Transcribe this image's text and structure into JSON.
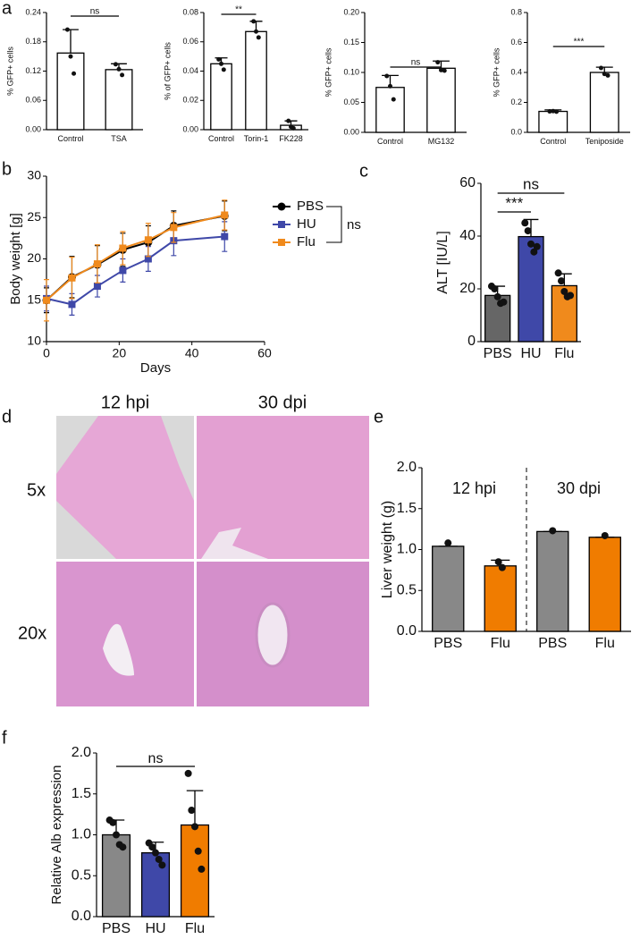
{
  "panel_labels": [
    "a",
    "b",
    "c",
    "d",
    "e",
    "f"
  ],
  "histology": {
    "columns": [
      "12 hpi",
      "30 dpi"
    ],
    "rows": [
      "5x",
      "20x"
    ]
  },
  "chart_data": [
    {
      "type": "bar",
      "ylabel": "% GFP+ cells",
      "categories": [
        "Control",
        "TSA"
      ],
      "values": [
        0.157,
        0.123
      ],
      "errors": [
        0.048,
        0.012
      ],
      "points": [
        [
          0.205,
          0.15,
          0.115
        ],
        [
          0.134,
          0.124,
          0.112
        ]
      ],
      "colors": [
        "#ffffff",
        "#ffffff"
      ],
      "annotations": [
        "ns"
      ],
      "ylim": [
        0,
        0.24
      ],
      "yticks": [
        {
          "value": 0,
          "label": "0.00"
        },
        {
          "value": 0.06,
          "label": "0.06"
        },
        {
          "value": 0.12,
          "label": "0.12"
        },
        {
          "value": 0.18,
          "label": "0.18"
        },
        {
          "value": 0.24,
          "label": "0.24"
        }
      ]
    },
    {
      "type": "bar",
      "ylabel": "% of GFP+ cells",
      "categories": [
        "Control",
        "Torin-1",
        "FK228"
      ],
      "values": [
        0.045,
        0.067,
        0.003
      ],
      "errors": [
        0.004,
        0.007,
        0.003
      ],
      "points": [
        [
          0.048,
          0.045,
          0.041
        ],
        [
          0.074,
          0.067,
          0.063
        ],
        [
          0.006,
          0.002,
          0.001
        ]
      ],
      "colors": [
        "#ffffff",
        "#ffffff",
        "#ffffff"
      ],
      "annotations": [
        "**"
      ],
      "ylim": [
        0,
        0.08
      ],
      "yticks": [
        {
          "value": 0,
          "label": "0.00"
        },
        {
          "value": 0.02,
          "label": "0.02"
        },
        {
          "value": 0.04,
          "label": "0.04"
        },
        {
          "value": 0.06,
          "label": "0.06"
        },
        {
          "value": 0.08,
          "label": "0.08"
        }
      ]
    },
    {
      "type": "bar",
      "ylabel": "% GFP+ cells",
      "categories": [
        "Control",
        "MG132"
      ],
      "values": [
        0.075,
        0.107
      ],
      "errors": [
        0.02,
        0.012
      ],
      "points": [
        [
          0.094,
          0.077,
          0.055
        ],
        [
          0.117,
          0.104,
          0.103
        ]
      ],
      "colors": [
        "#ffffff",
        "#ffffff"
      ],
      "annotations": [
        "ns"
      ],
      "ylim": [
        0,
        0.2
      ],
      "yticks": [
        {
          "value": 0,
          "label": "0.00"
        },
        {
          "value": 0.05,
          "label": "0.05"
        },
        {
          "value": 0.1,
          "label": "0.10"
        },
        {
          "value": 0.15,
          "label": "0.15"
        },
        {
          "value": 0.2,
          "label": "0.20"
        }
      ]
    },
    {
      "type": "bar",
      "ylabel": "% GFP+ cells",
      "categories": [
        "Control",
        "Teniposide"
      ],
      "values": [
        0.14,
        0.4
      ],
      "errors": [
        0.01,
        0.035
      ],
      "points": [
        [
          0.14,
          0.142,
          0.138
        ],
        [
          0.43,
          0.39,
          0.38
        ]
      ],
      "colors": [
        "#ffffff",
        "#ffffff"
      ],
      "annotations": [
        "***"
      ],
      "ylim": [
        0,
        0.8
      ],
      "yticks": [
        {
          "value": 0,
          "label": "0.0"
        },
        0.2,
        0.4,
        0.6,
        0.8
      ]
    },
    {
      "type": "line",
      "xlabel": "Days",
      "ylabel": "Body weight [g]",
      "x": [
        0,
        7,
        14,
        21,
        28,
        35,
        49
      ],
      "series": [
        {
          "name": "PBS",
          "color": "#000000",
          "marker": "circle",
          "values": [
            15,
            17.8,
            19.3,
            21.1,
            22,
            24,
            25.2
          ],
          "errors": [
            1.5,
            2.5,
            2.3,
            2,
            2,
            1.8,
            1.8
          ]
        },
        {
          "name": "HU",
          "color": "#3f48a8",
          "marker": "square",
          "values": [
            15.2,
            14.5,
            16.7,
            18.6,
            20,
            22.2,
            22.7
          ],
          "errors": [
            1.5,
            1.3,
            1.3,
            1.4,
            1.5,
            1.8,
            1.8
          ]
        },
        {
          "name": "Flu",
          "color": "#f08a1c",
          "marker": "square",
          "values": [
            15,
            17.7,
            19.4,
            21.3,
            22.3,
            23.8,
            25.3
          ],
          "errors": [
            2.5,
            2.5,
            2.3,
            2,
            2,
            1.8,
            1.8
          ]
        }
      ],
      "annotations": [
        "ns"
      ],
      "xlim": [
        0,
        60
      ],
      "xticks": [
        0,
        20,
        40,
        60
      ],
      "ylim": [
        10,
        30
      ],
      "yticks": [
        10,
        15,
        20,
        25,
        30
      ]
    },
    {
      "type": "bar",
      "ylabel": "ALT [IU/L]",
      "categories": [
        "PBS",
        "HU",
        "Flu"
      ],
      "values": [
        17.5,
        39.8,
        21.2
      ],
      "errors": [
        3.5,
        6.5,
        4.5
      ],
      "points": [
        [
          21,
          20,
          17,
          14.5,
          15
        ],
        [
          45,
          42,
          37,
          34,
          36
        ],
        [
          26,
          23,
          19,
          17,
          17.5
        ]
      ],
      "colors": [
        "#666666",
        "#3f48a8",
        "#f08a1c"
      ],
      "annotations": [
        "ns",
        "***"
      ],
      "ylim": [
        0,
        60
      ],
      "yticks": [
        0,
        20,
        40,
        60
      ]
    },
    {
      "type": "bar",
      "ylabel": "Liver weight (g)",
      "categories": [
        "PBS",
        "Flu",
        "PBS",
        "Flu"
      ],
      "groups": [
        "12 hpi",
        "30 dpi"
      ],
      "values": [
        1.04,
        0.8,
        1.22,
        1.15
      ],
      "errors": [
        0,
        0.07,
        0,
        0
      ],
      "points": [
        [
          1.08
        ],
        [
          0.85,
          0.78
        ],
        [
          1.23
        ],
        [
          1.17
        ]
      ],
      "colors": [
        "#888888",
        "#f07c00",
        "#888888",
        "#f07c00"
      ],
      "annotations": [],
      "ylim": [
        0,
        2
      ],
      "yticks": [
        {
          "value": 0,
          "label": "0.0"
        },
        0.5,
        {
          "value": 1,
          "label": "1.0"
        },
        1.5,
        {
          "value": 2,
          "label": "2.0"
        }
      ]
    },
    {
      "type": "bar",
      "ylabel": "Relative Alb expression",
      "categories": [
        "PBS",
        "HU",
        "Flu"
      ],
      "values": [
        1.0,
        0.78,
        1.12
      ],
      "errors": [
        0.18,
        0.13,
        0.42
      ],
      "points": [
        [
          1.18,
          1.15,
          1.0,
          0.88,
          0.85
        ],
        [
          0.9,
          0.85,
          0.78,
          0.7,
          0.63
        ],
        [
          1.75,
          1.3,
          1.1,
          0.8,
          0.58
        ]
      ],
      "colors": [
        "#888888",
        "#3f48a8",
        "#f07c00"
      ],
      "annotations": [
        "ns"
      ],
      "ylim": [
        0,
        2
      ],
      "yticks": [
        {
          "value": 0,
          "label": "0.0"
        },
        0.5,
        {
          "value": 1,
          "label": "1.0"
        },
        1.5,
        {
          "value": 2,
          "label": "2.0"
        }
      ]
    }
  ]
}
